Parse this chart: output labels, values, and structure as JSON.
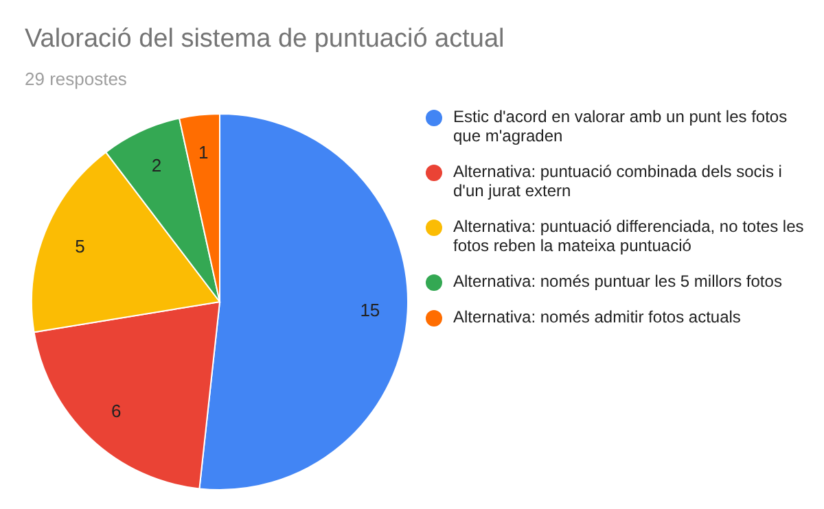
{
  "chart_data": {
    "type": "pie",
    "title": "Valoració del sistema de puntuació actual",
    "subtitle": "29 respostes",
    "categories": [
      "Estic d'acord en valorar amb un punt les fotos que m'agraden",
      "Alternativa: puntuació combinada dels socis i d'un jurat extern",
      "Alternativa: puntuació differenciada, no totes les fotos reben la mateixa puntuació",
      "Alternativa: només puntuar les 5 millors fotos",
      "Alternativa: només admitir fotos actuals"
    ],
    "values": [
      15,
      6,
      5,
      2,
      1
    ],
    "colors": [
      "#4285f4",
      "#ea4335",
      "#fbbc04",
      "#34a853",
      "#ff6d01"
    ],
    "data_labels": true,
    "legend": "right"
  }
}
